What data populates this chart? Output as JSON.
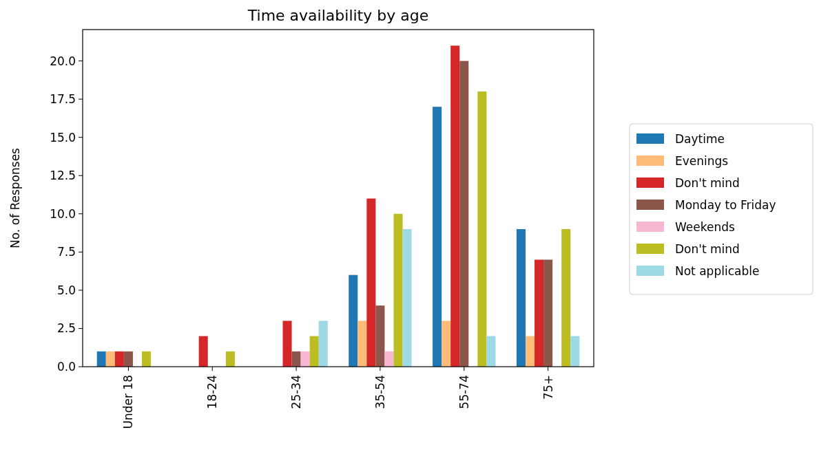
{
  "chart_data": {
    "type": "bar",
    "title": "Time availability by age",
    "ylabel": "No. of Responses",
    "categories": [
      "Under 18",
      "18-24",
      "25-34",
      "35-54",
      "55-74",
      "75+"
    ],
    "series": [
      {
        "name": "Daytime",
        "color": "#1f77b4",
        "values": [
          1,
          0,
          0,
          6,
          17,
          9
        ]
      },
      {
        "name": "Evenings",
        "color": "#ffbb78",
        "values": [
          1,
          0,
          0,
          3,
          3,
          2
        ]
      },
      {
        "name": "Don't mind",
        "color": "#d62728",
        "values": [
          1,
          2,
          3,
          11,
          21,
          7
        ]
      },
      {
        "name": "Monday to Friday",
        "color": "#8c564b",
        "values": [
          1,
          0,
          1,
          4,
          20,
          7
        ]
      },
      {
        "name": "Weekends",
        "color": "#f7b6d2",
        "values": [
          0,
          0,
          1,
          1,
          0,
          0
        ]
      },
      {
        "name": "Don't mind",
        "color": "#bcbd22",
        "values": [
          1,
          1,
          2,
          10,
          18,
          9
        ]
      },
      {
        "name": "Not applicable",
        "color": "#9edae5",
        "values": [
          0,
          0,
          3,
          9,
          2,
          2
        ]
      }
    ],
    "ylim": [
      0,
      22.05
    ],
    "yticks": [
      {
        "value": 0,
        "label": "0.0"
      },
      {
        "value": 2.5,
        "label": "2.5"
      },
      {
        "value": 5,
        "label": "5.0"
      },
      {
        "value": 7.5,
        "label": "7.5"
      },
      {
        "value": 10,
        "label": "10.0"
      },
      {
        "value": 12.5,
        "label": "12.5"
      },
      {
        "value": 15,
        "label": "15.0"
      },
      {
        "value": 17.5,
        "label": "17.5"
      },
      {
        "value": 20,
        "label": "20.0"
      }
    ],
    "legend": "right"
  }
}
